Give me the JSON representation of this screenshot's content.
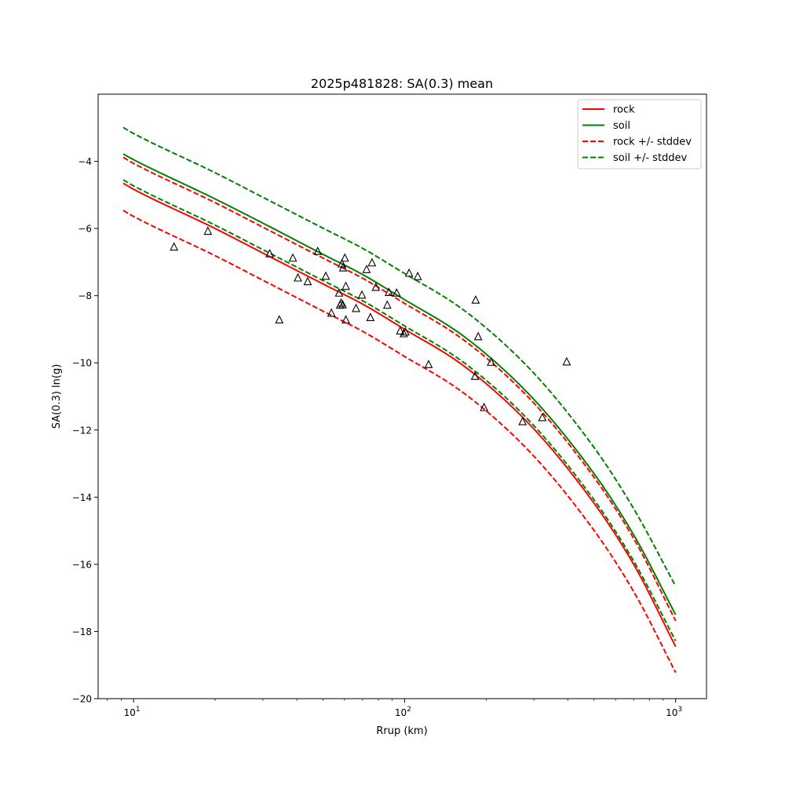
{
  "chart_data": {
    "type": "line",
    "title": "2025p481828: SA(0.3) mean",
    "xlabel": "Rrup (km)",
    "ylabel": "SA(0.3) ln(g)",
    "x_scale": "log",
    "xlim": [
      7.4,
      1300
    ],
    "ylim": [
      -20,
      -2.0
    ],
    "x_ticks": [
      {
        "value": 10,
        "base": "10",
        "exp": "1"
      },
      {
        "value": 100,
        "base": "10",
        "exp": "2"
      },
      {
        "value": 1000,
        "base": "10",
        "exp": "3"
      }
    ],
    "y_ticks": [
      {
        "value": -4,
        "label": "−4"
      },
      {
        "value": -6,
        "label": "−6"
      },
      {
        "value": -8,
        "label": "−8"
      },
      {
        "value": -10,
        "label": "−10"
      },
      {
        "value": -12,
        "label": "−12"
      },
      {
        "value": -14,
        "label": "−14"
      },
      {
        "value": -16,
        "label": "−16"
      },
      {
        "value": -18,
        "label": "−18"
      },
      {
        "value": -20,
        "label": "−20"
      }
    ],
    "grid": false,
    "legend_position": "top-right",
    "series": [
      {
        "name": "rock",
        "color": "#ff0000",
        "dash": "solid",
        "x": [
          9.16,
          10,
          20,
          30,
          50,
          70,
          100,
          150,
          200,
          300,
          500,
          700,
          1000
        ],
        "y": [
          -4.65,
          -4.83,
          -6.0,
          -6.73,
          -7.65,
          -8.25,
          -9.0,
          -9.85,
          -10.62,
          -11.97,
          -14.18,
          -16.0,
          -18.45
        ]
      },
      {
        "name": "soil",
        "color": "#008000",
        "dash": "solid",
        "x": [
          9.16,
          10,
          20,
          30,
          50,
          70,
          100,
          150,
          200,
          300,
          500,
          700,
          1000
        ],
        "y": [
          -3.78,
          -3.95,
          -5.12,
          -5.84,
          -6.77,
          -7.37,
          -8.12,
          -8.97,
          -9.74,
          -11.09,
          -13.3,
          -15.12,
          -17.5
        ]
      },
      {
        "name": "rock +/- stddev",
        "color": "#ff0000",
        "dash": "dashed",
        "x": [
          9.16,
          10,
          20,
          30,
          50,
          70,
          100,
          150,
          200,
          300,
          500,
          700,
          1000
        ],
        "y": [
          -3.88,
          -4.06,
          -5.23,
          -5.96,
          -6.88,
          -7.48,
          -8.23,
          -9.08,
          -9.85,
          -11.2,
          -13.41,
          -15.23,
          -17.68
        ]
      },
      {
        "name": "",
        "color": "#ff0000",
        "dash": "dashed",
        "x": [
          9.16,
          10,
          20,
          30,
          50,
          70,
          100,
          150,
          200,
          300,
          500,
          700,
          1000
        ],
        "y": [
          -5.46,
          -5.64,
          -6.81,
          -7.54,
          -8.46,
          -9.06,
          -9.81,
          -10.66,
          -11.43,
          -12.78,
          -14.99,
          -16.81,
          -19.22
        ]
      },
      {
        "name": "soil +/- stddev",
        "color": "#008000",
        "dash": "dashed",
        "x": [
          9.16,
          10,
          20,
          30,
          50,
          70,
          100,
          150,
          200,
          300,
          500,
          700,
          1000
        ],
        "y": [
          -2.99,
          -3.17,
          -4.34,
          -5.07,
          -5.99,
          -6.59,
          -7.34,
          -8.19,
          -8.96,
          -10.31,
          -12.52,
          -14.34,
          -16.65
        ]
      },
      {
        "name": "",
        "color": "#008000",
        "dash": "dashed",
        "x": [
          9.16,
          10,
          20,
          30,
          50,
          70,
          100,
          150,
          200,
          300,
          500,
          700,
          1000
        ],
        "y": [
          -4.55,
          -4.73,
          -5.9,
          -6.63,
          -7.55,
          -8.15,
          -8.9,
          -9.75,
          -10.52,
          -11.87,
          -14.08,
          -15.9,
          -18.28
        ]
      }
    ],
    "observations": {
      "marker": "triangle-open",
      "color": "#000000",
      "points": [
        {
          "x": 14.1,
          "y": -6.55
        },
        {
          "x": 18.8,
          "y": -6.08
        },
        {
          "x": 31.8,
          "y": -6.75
        },
        {
          "x": 34.5,
          "y": -8.72
        },
        {
          "x": 38.7,
          "y": -6.88
        },
        {
          "x": 40.4,
          "y": -7.47
        },
        {
          "x": 43.9,
          "y": -7.58
        },
        {
          "x": 47.8,
          "y": -6.68
        },
        {
          "x": 51.2,
          "y": -7.42
        },
        {
          "x": 53.7,
          "y": -8.52
        },
        {
          "x": 57.3,
          "y": -7.92
        },
        {
          "x": 57.8,
          "y": -8.28
        },
        {
          "x": 58.3,
          "y": -8.22
        },
        {
          "x": 58.7,
          "y": -7.05
        },
        {
          "x": 59.1,
          "y": -8.27
        },
        {
          "x": 59.3,
          "y": -7.17
        },
        {
          "x": 60.2,
          "y": -6.88
        },
        {
          "x": 60.7,
          "y": -7.72
        },
        {
          "x": 60.7,
          "y": -8.72
        },
        {
          "x": 66.2,
          "y": -8.38
        },
        {
          "x": 69.6,
          "y": -7.98
        },
        {
          "x": 72.4,
          "y": -7.22
        },
        {
          "x": 74.8,
          "y": -8.65
        },
        {
          "x": 75.8,
          "y": -7.02
        },
        {
          "x": 78.3,
          "y": -7.75
        },
        {
          "x": 86.3,
          "y": -8.28
        },
        {
          "x": 87.5,
          "y": -7.9
        },
        {
          "x": 93.5,
          "y": -7.92
        },
        {
          "x": 96.3,
          "y": -9.05
        },
        {
          "x": 99.3,
          "y": -9.13
        },
        {
          "x": 100.7,
          "y": -9.08
        },
        {
          "x": 103.9,
          "y": -7.33
        },
        {
          "x": 111.8,
          "y": -7.43
        },
        {
          "x": 122.6,
          "y": -10.05
        },
        {
          "x": 181.9,
          "y": -10.4
        },
        {
          "x": 182.9,
          "y": -8.13
        },
        {
          "x": 186.9,
          "y": -9.22
        },
        {
          "x": 196.4,
          "y": -11.33
        },
        {
          "x": 208.4,
          "y": -9.98
        },
        {
          "x": 272.5,
          "y": -11.75
        },
        {
          "x": 322.2,
          "y": -11.63
        },
        {
          "x": 396.3,
          "y": -9.97
        }
      ]
    }
  }
}
